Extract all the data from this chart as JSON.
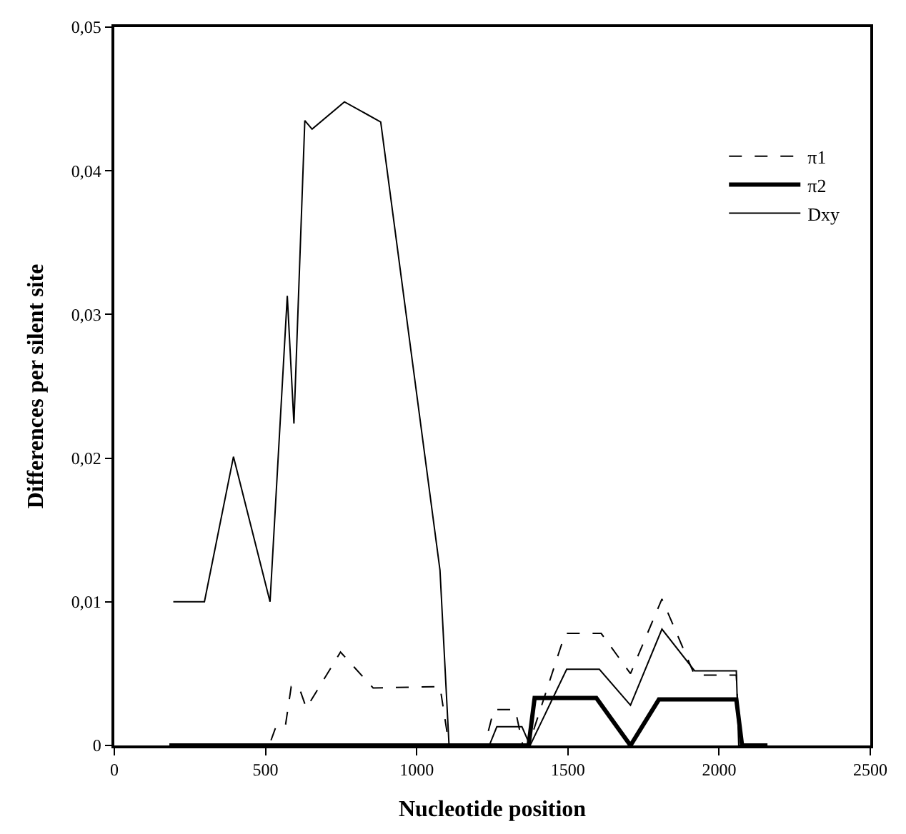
{
  "chart_data": {
    "type": "line",
    "xlabel": "Nucleotide position",
    "ylabel": "Differences per silent site",
    "xlim": [
      0,
      2500
    ],
    "xticks": [
      0,
      500,
      1000,
      1500,
      2000,
      2500
    ],
    "ylim": [
      0,
      0.05
    ],
    "yticks": [
      0,
      {
        "value": 0.01,
        "label": "0,01"
      },
      {
        "value": 0.02,
        "label": "0,02"
      },
      {
        "value": 0.03,
        "label": "0,03"
      },
      {
        "value": 0.04,
        "label": "0,04"
      },
      {
        "value": 0.05,
        "label": "0,05"
      }
    ],
    "legend": "top right",
    "marker": "none",
    "series": [
      {
        "name": "π1",
        "color": "#000000",
        "line_style": "dashed",
        "x": [
          190,
          512,
          536,
          566,
          585,
          610,
          635,
          748,
          856,
          1077,
          1107,
          1225,
          1255,
          1326,
          1351,
          1370,
          1491,
          1610,
          1707,
          1811,
          1919,
          2057,
          2068,
          2150
        ],
        "values": [
          0,
          0,
          0.0014,
          0.0014,
          0.0041,
          0.0041,
          0.0026,
          0.0065,
          0.004,
          0.0041,
          0,
          0,
          0.0025,
          0.0025,
          0,
          0,
          0.0078,
          0.0078,
          0.005,
          0.0102,
          0.0049,
          0.0049,
          0,
          0
        ]
      },
      {
        "name": "π2",
        "color": "#000000",
        "line_style": "solid",
        "x": [
          182,
          1370,
          1390,
          1594,
          1707,
          1801,
          2057,
          2076,
          2160
        ],
        "values": [
          0,
          0,
          0.0033,
          0.0033,
          0,
          0.0032,
          0.0032,
          0,
          0
        ]
      },
      {
        "name": "Dxy",
        "color": "#000000",
        "line_style": "solid",
        "x": [
          195,
          298,
          394,
          515,
          572,
          594,
          630,
          654,
          761,
          881,
          1077,
          1107,
          1240,
          1265,
          1348,
          1375,
          1496,
          1604,
          1707,
          1811,
          1919,
          2057,
          2065,
          2150
        ],
        "values": [
          0.01,
          0.01,
          0.0201,
          0.01,
          0.0313,
          0.0224,
          0.0435,
          0.0429,
          0.0448,
          0.0434,
          0.0122,
          0,
          0,
          0.0013,
          0.0013,
          0,
          0.0053,
          0.0053,
          0.0028,
          0.0081,
          0.0052,
          0.0052,
          0,
          0
        ]
      }
    ]
  }
}
